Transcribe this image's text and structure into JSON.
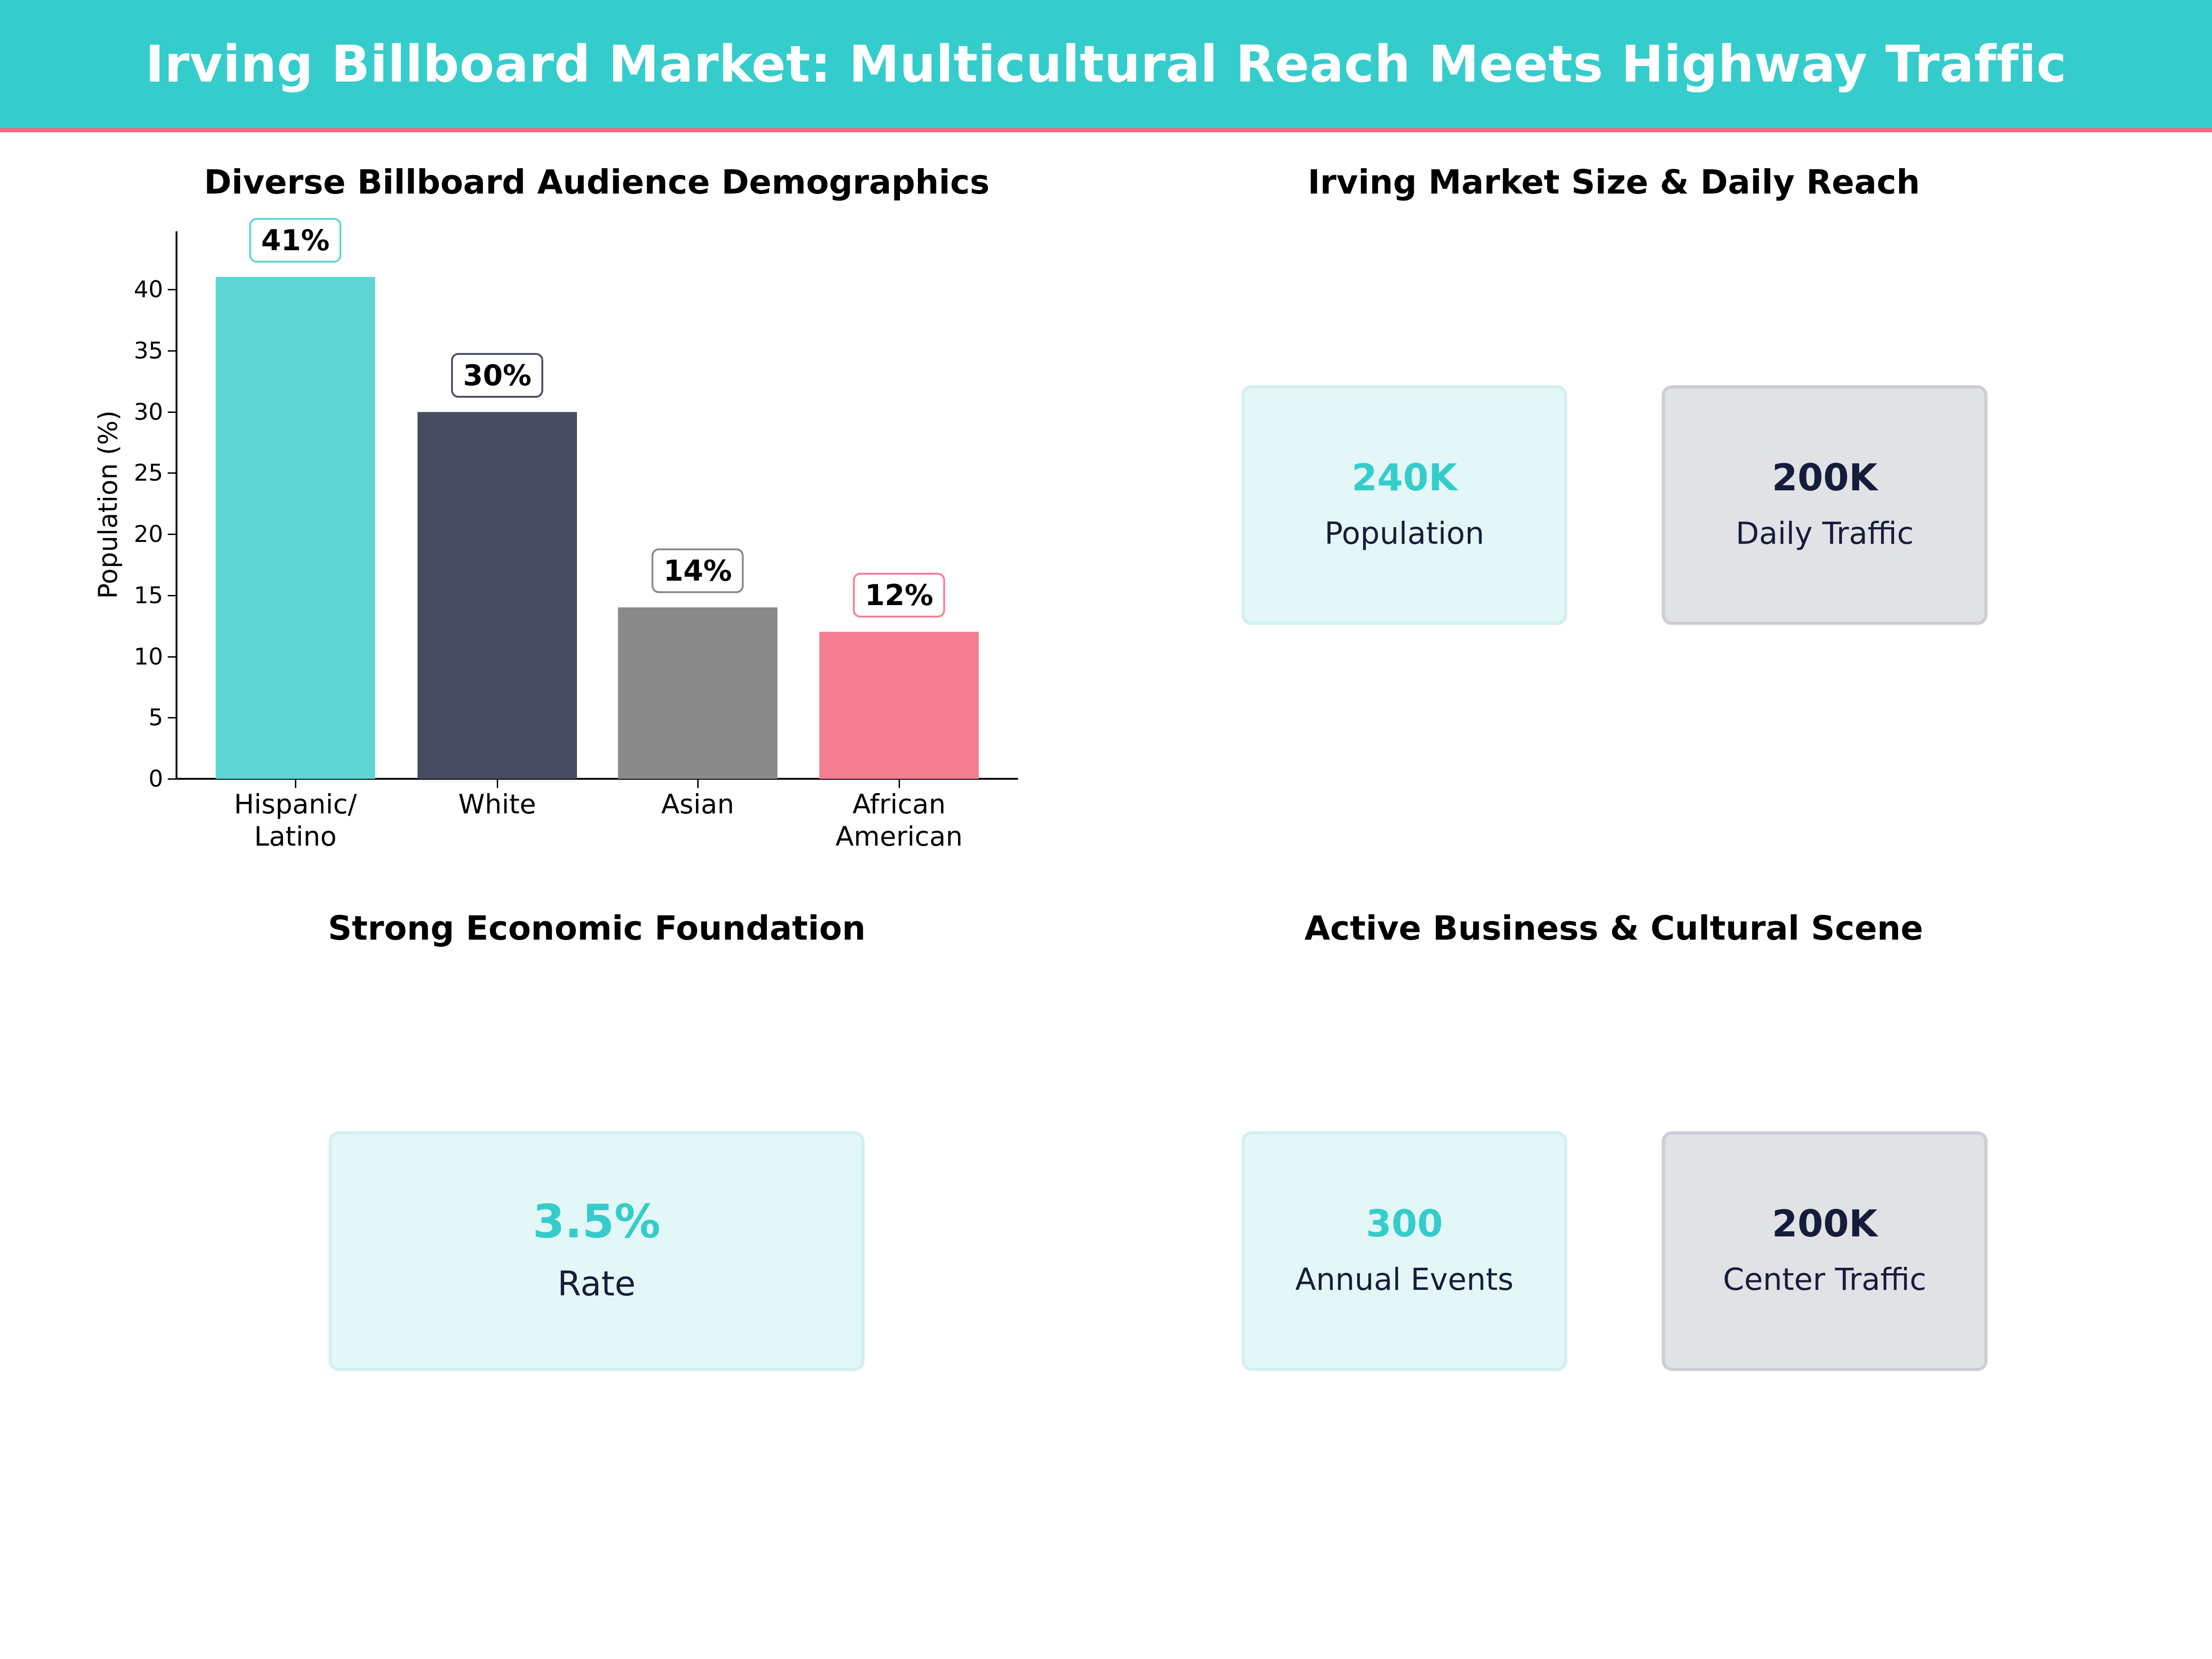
{
  "header": {
    "title": "Irving Billboard Market: Multicultural Reach Meets Highway Traffic"
  },
  "panels": {
    "demographics": {
      "title": "Diverse Billboard Audience Demographics"
    },
    "market_size": {
      "title": "Irving Market Size & Daily Reach",
      "cards": [
        {
          "value": "240K",
          "label": "Population"
        },
        {
          "value": "200K",
          "label": "Daily Traffic"
        }
      ]
    },
    "economy": {
      "title": "Strong Economic Foundation",
      "cards": [
        {
          "value": "3.5%",
          "label": "Rate"
        }
      ]
    },
    "business": {
      "title": "Active Business & Cultural Scene",
      "cards": [
        {
          "value": "300",
          "label": "Annual Events"
        },
        {
          "value": "200K",
          "label": "Center Traffic"
        }
      ]
    }
  },
  "colors": {
    "accent_teal": "#35cccc",
    "accent_pink": "#f06a80",
    "bar_hispanic": "#5dd6d3",
    "bar_white": "#474c60",
    "bar_asian": "#8a8a8a",
    "bar_african_american": "#f57f92",
    "navy_text": "#161d3a"
  },
  "chart_data": {
    "type": "bar",
    "title": "Diverse Billboard Audience Demographics",
    "categories": [
      "Hispanic/\nLatino",
      "White",
      "Asian",
      "African\nAmerican"
    ],
    "values": [
      41,
      30,
      14,
      12
    ],
    "value_labels": [
      "41%",
      "30%",
      "14%",
      "12%"
    ],
    "xlabel": "",
    "ylabel": "Population (%)",
    "ylim": [
      0,
      44.5
    ],
    "yticks": [
      "0",
      "5",
      "10",
      "15",
      "20",
      "25",
      "30",
      "35",
      "40"
    ],
    "grid": false,
    "legend": "none"
  }
}
